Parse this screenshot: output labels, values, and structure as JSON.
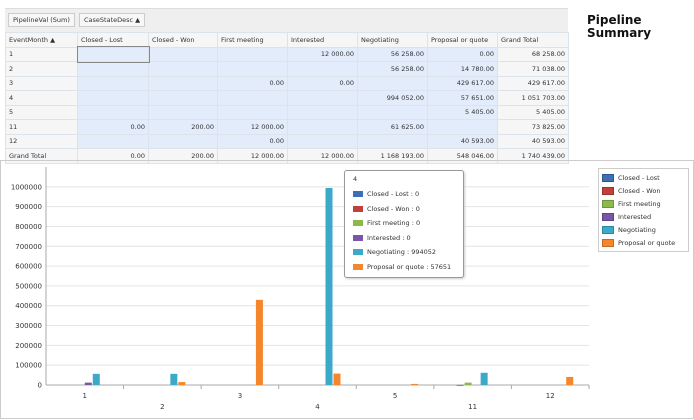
{
  "pivot": {
    "data_field": "PipelineVal (Sum)",
    "column_field": "CaseStateDesc",
    "row_field": "EventMonth",
    "columns": [
      "Closed - Lost",
      "Closed - Won",
      "First meeting",
      "Interested",
      "Negotiating",
      "Proposal or quote",
      "Grand Total"
    ],
    "rows": [
      {
        "label": "1",
        "cells": [
          "",
          "",
          "",
          "12 000.00",
          "56 258.00",
          "0.00",
          "68 258.00"
        ]
      },
      {
        "label": "2",
        "cells": [
          "",
          "",
          "",
          "",
          "56 258.00",
          "14 780.00",
          "71 038.00"
        ]
      },
      {
        "label": "3",
        "cells": [
          "",
          "",
          "0.00",
          "0.00",
          "",
          "429 617.00",
          "429 617.00"
        ]
      },
      {
        "label": "4",
        "cells": [
          "",
          "",
          "",
          "",
          "994 052.00",
          "57 651.00",
          "1 051 703.00"
        ]
      },
      {
        "label": "5",
        "cells": [
          "",
          "",
          "",
          "",
          "",
          "5 405.00",
          "5 405.00"
        ]
      },
      {
        "label": "11",
        "cells": [
          "0.00",
          "200.00",
          "12 000.00",
          "",
          "61 625.00",
          "",
          "73 825.00"
        ]
      },
      {
        "label": "12",
        "cells": [
          "",
          "",
          "0.00",
          "",
          "",
          "40 593.00",
          "40 593.00"
        ]
      }
    ],
    "grand_total": {
      "label": "Grand Total",
      "cells": [
        "0.00",
        "200.00",
        "12 000.00",
        "12 000.00",
        "1 168 193.00",
        "548 046.00",
        "1 740 439.00"
      ]
    }
  },
  "title": "Pipeline Summary",
  "tooltip": {
    "header": "4",
    "items": [
      "Closed - Lost : 0",
      "Closed - Won : 0",
      "First meeting : 0",
      "Interested : 0",
      "Negotiating : 994052",
      "Proposal or quote : 57651"
    ]
  },
  "chart_data": {
    "type": "bar",
    "categories": [
      "1",
      "2",
      "3",
      "4",
      "5",
      "11",
      "12"
    ],
    "ylim": [
      0,
      1100000
    ],
    "yticks": [
      "0",
      "100000",
      "200000",
      "300000",
      "400000",
      "500000",
      "600000",
      "700000",
      "800000",
      "900000",
      "1000000"
    ],
    "legend": "right",
    "series": [
      {
        "name": "Closed - Lost",
        "color": "#3b6fb6",
        "values": [
          0,
          0,
          0,
          0,
          0,
          0,
          0
        ]
      },
      {
        "name": "Closed - Won",
        "color": "#c0403c",
        "values": [
          0,
          0,
          0,
          0,
          0,
          200,
          0
        ]
      },
      {
        "name": "First meeting",
        "color": "#8db94a",
        "values": [
          0,
          0,
          0,
          0,
          0,
          12000,
          0
        ]
      },
      {
        "name": "Interested",
        "color": "#7a56a6",
        "values": [
          12000,
          0,
          0,
          0,
          0,
          0,
          0
        ]
      },
      {
        "name": "Negotiating",
        "color": "#3aaac8",
        "values": [
          56258,
          56258,
          0,
          994052,
          0,
          61625,
          0
        ]
      },
      {
        "name": "Proposal or quote",
        "color": "#f5862b",
        "values": [
          0,
          14780,
          429617,
          57651,
          5405,
          0,
          40593
        ]
      }
    ]
  }
}
